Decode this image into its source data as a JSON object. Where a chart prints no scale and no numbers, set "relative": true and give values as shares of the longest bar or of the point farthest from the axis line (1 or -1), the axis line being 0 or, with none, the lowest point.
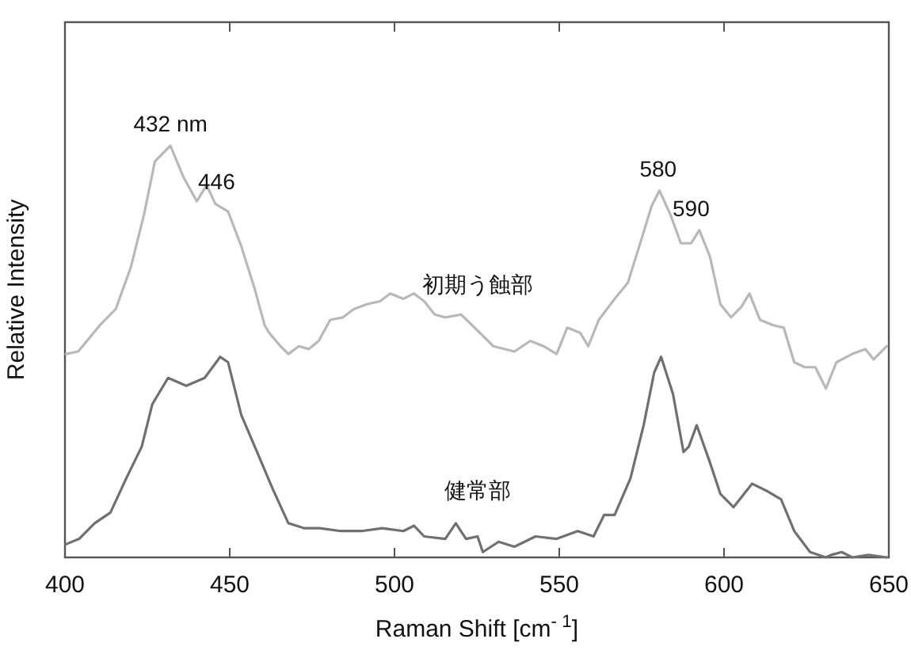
{
  "chart_data": {
    "type": "line",
    "relative": true,
    "xlabel": "Raman Shift [cm$^{- 1}$]",
    "ylabel": "Relative Intensity",
    "xlim": [
      400,
      650
    ],
    "xticks": [
      400,
      450,
      500,
      550,
      600,
      650
    ],
    "grid": false,
    "legend": false,
    "marker": "none",
    "line_style": "solid",
    "tick_labels": "x",
    "annotations": [
      {
        "text": "432 nm",
        "x": 432,
        "y": 1.0
      },
      {
        "text": "446",
        "x": 446,
        "y": 0.859
      },
      {
        "text": "580",
        "x": 580,
        "y": 0.891
      },
      {
        "text": "590",
        "x": 590,
        "y": 0.795
      }
    ],
    "series": [
      {
        "name": "初期う蝕部",
        "color": "#b8b8b8",
        "x": [
          400.3,
          404,
          410.6,
          415.4,
          420,
          424,
          427.3,
          432,
          436,
          440,
          443,
          445.6,
          449.5,
          453.5,
          457.5,
          460.6,
          462,
          465.4,
          467.8,
          471,
          474,
          477,
          480.5,
          484.4,
          487.6,
          491.6,
          495.6,
          498.7,
          502.7,
          505.9,
          509,
          512.2,
          515.4,
          520.2,
          525.2,
          530,
          536.4,
          541.2,
          545.2,
          549.2,
          552.4,
          556.4,
          558.8,
          562,
          566.8,
          570.8,
          574.8,
          578,
          580.4,
          583.7,
          586.9,
          590,
          592.5,
          595.7,
          598.9,
          602.1,
          605.3,
          607.7,
          610.9,
          614.9,
          618.1,
          621.3,
          624.5,
          627.7,
          630.9,
          634.1,
          638.9,
          642.9,
          645.4,
          649.4
        ],
        "values": [
          0.494,
          0.5,
          0.564,
          0.603,
          0.705,
          0.833,
          0.962,
          1.0,
          0.923,
          0.865,
          0.904,
          0.859,
          0.84,
          0.756,
          0.654,
          0.564,
          0.545,
          0.513,
          0.494,
          0.513,
          0.506,
          0.526,
          0.577,
          0.583,
          0.603,
          0.615,
          0.622,
          0.641,
          0.628,
          0.641,
          0.622,
          0.59,
          0.583,
          0.59,
          0.551,
          0.513,
          0.5,
          0.526,
          0.513,
          0.494,
          0.558,
          0.545,
          0.513,
          0.577,
          0.628,
          0.667,
          0.769,
          0.853,
          0.891,
          0.833,
          0.763,
          0.763,
          0.795,
          0.731,
          0.615,
          0.583,
          0.609,
          0.641,
          0.577,
          0.564,
          0.558,
          0.474,
          0.462,
          0.462,
          0.41,
          0.474,
          0.494,
          0.506,
          0.481,
          0.513
        ]
      },
      {
        "name": "健常部",
        "color": "#707070",
        "x": [
          400.3,
          404.3,
          409,
          413.8,
          418.6,
          423.3,
          426.5,
          431.3,
          436.8,
          442.4,
          447.1,
          449.5,
          453.5,
          458.3,
          463,
          467.8,
          472.5,
          477.3,
          483.7,
          490,
          496.3,
          502.7,
          505.9,
          509,
          515.4,
          518.6,
          521.7,
          525.2,
          526.8,
          531.6,
          536.4,
          542.8,
          549.2,
          555.6,
          560.4,
          563.6,
          566.8,
          571.6,
          575.6,
          578.8,
          580.9,
          584.5,
          587.7,
          589.3,
          591.7,
          595.7,
          598.9,
          602.9,
          608.5,
          613.3,
          617.3,
          621.3,
          626.1,
          630.9,
          632.5,
          635.7,
          638.9,
          643.8,
          649.4
        ],
        "values": [
          0.032,
          0.045,
          0.083,
          0.109,
          0.192,
          0.269,
          0.372,
          0.436,
          0.417,
          0.436,
          0.487,
          0.474,
          0.346,
          0.256,
          0.167,
          0.083,
          0.071,
          0.071,
          0.064,
          0.064,
          0.071,
          0.064,
          0.077,
          0.051,
          0.045,
          0.083,
          0.045,
          0.051,
          0.013,
          0.038,
          0.026,
          0.051,
          0.045,
          0.064,
          0.051,
          0.103,
          0.103,
          0.192,
          0.321,
          0.449,
          0.487,
          0.397,
          0.256,
          0.269,
          0.321,
          0.231,
          0.154,
          0.122,
          0.179,
          0.16,
          0.141,
          0.064,
          0.013,
          0.0,
          0.006,
          0.013,
          0.0,
          0.006,
          0.0
        ]
      }
    ]
  }
}
